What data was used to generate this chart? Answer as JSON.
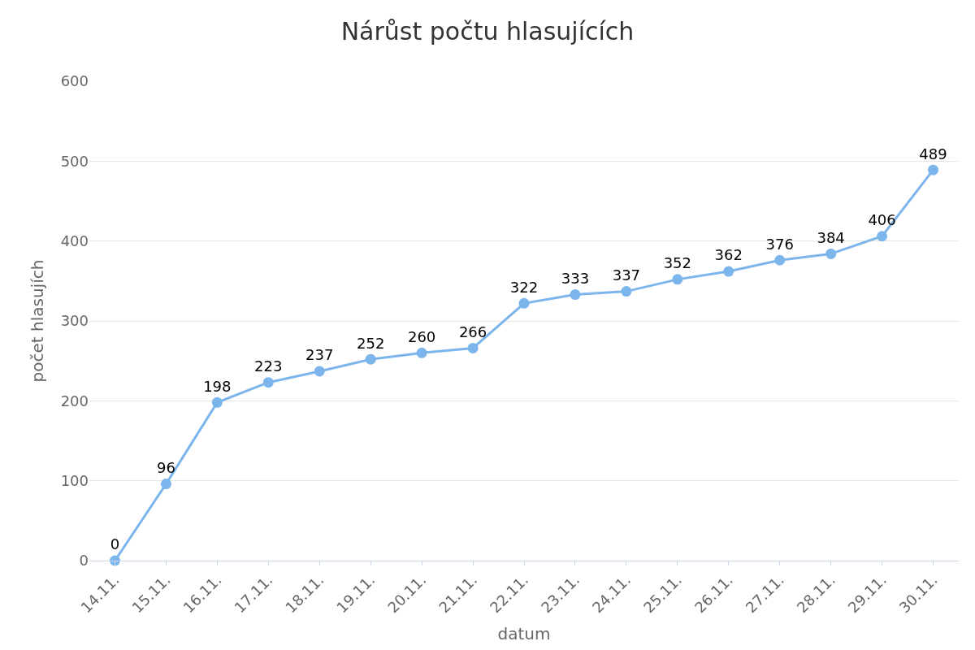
{
  "chart_data": {
    "type": "line",
    "title": "Nárůst počtu hlasujících",
    "xlabel": "datum",
    "ylabel": "počet hlasujích",
    "categories": [
      "14.11.",
      "15.11.",
      "16.11.",
      "17.11.",
      "18.11.",
      "19.11.",
      "20.11.",
      "21.11.",
      "22.11.",
      "23.11.",
      "24.11.",
      "25.11.",
      "26.11.",
      "27.11.",
      "28.11.",
      "29.11.",
      "30.11."
    ],
    "series": [
      {
        "color": "#7cb5ec",
        "values": [
          0,
          96,
          198,
          223,
          237,
          252,
          260,
          266,
          322,
          333,
          337,
          352,
          362,
          376,
          384,
          406,
          489
        ]
      }
    ],
    "ylim": [
      0,
      600
    ],
    "yticks": [
      0,
      100,
      200,
      300,
      400,
      500,
      600
    ],
    "grid": "y",
    "marker": "circle",
    "line_style": "solid",
    "data_labels": true
  }
}
